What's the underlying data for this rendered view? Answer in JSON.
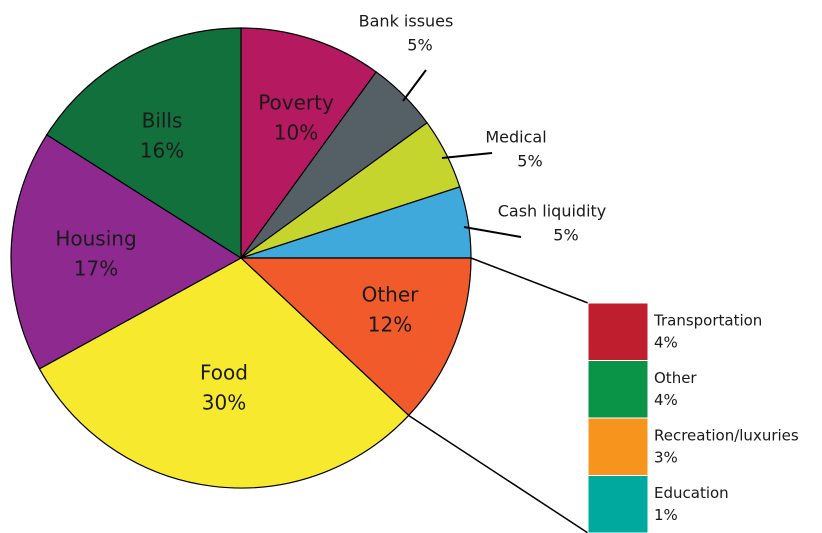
{
  "chart_data": {
    "type": "pie",
    "categories": [
      "Poverty",
      "Bank issues",
      "Medical",
      "Cash liquidity",
      "Other",
      "Food",
      "Housing",
      "Bills"
    ],
    "values": [
      10,
      5,
      5,
      5,
      12,
      30,
      17,
      16
    ],
    "value_labels": [
      "10%",
      "5%",
      "5%",
      "5%",
      "12%",
      "30%",
      "17%",
      "16%"
    ],
    "colors": [
      "#b5195f",
      "#555f66",
      "#c6d52e",
      "#3fa9dc",
      "#f15a2b",
      "#f7ea2e",
      "#8e2a8f",
      "#12703d"
    ],
    "breakdown": {
      "categories": [
        "Transportation",
        "Other",
        "Recreation/luxuries",
        "Education"
      ],
      "values": [
        4,
        4,
        3,
        1
      ],
      "value_labels": [
        "4%",
        "4%",
        "3%",
        "1%"
      ],
      "colors": [
        "#be1e2d",
        "#0a9447",
        "#f7941d",
        "#00a99d"
      ]
    }
  }
}
